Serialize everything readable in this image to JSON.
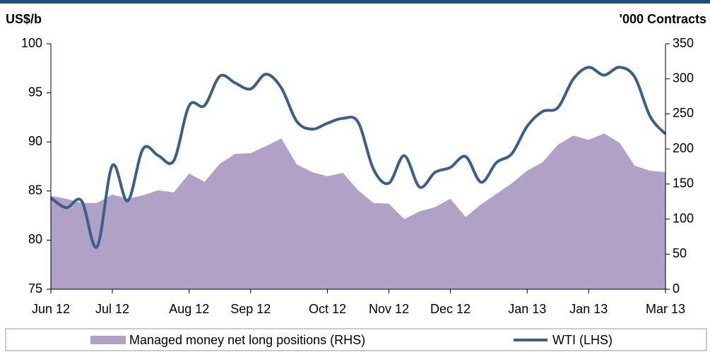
{
  "chart_data": {
    "type": "line_area",
    "y_label": "US$/b",
    "y2_label": "'000 Contracts",
    "categories": [
      "Jun 12",
      null,
      null,
      null,
      "Jul 12",
      null,
      null,
      null,
      null,
      "Aug 12",
      null,
      null,
      null,
      "Sep 12",
      null,
      null,
      null,
      null,
      "Oct 12",
      null,
      null,
      null,
      "Nov 12",
      null,
      null,
      null,
      "Dec 12",
      null,
      null,
      null,
      null,
      "Jan 13",
      null,
      null,
      null,
      "Jan 13",
      null,
      null,
      null,
      null,
      "Mar 13"
    ],
    "series": [
      {
        "name": "Managed money net long positions (RHS)",
        "color": "#b1a1c7",
        "axis": "y2",
        "kind": "area",
        "values": [
          133,
          129,
          123,
          123,
          135,
          129,
          134,
          141,
          138,
          165,
          153,
          179,
          193,
          194,
          204,
          215,
          178,
          167,
          161,
          166,
          141,
          123,
          122,
          100,
          111,
          117,
          129,
          103,
          121,
          136,
          151,
          169,
          181,
          206,
          219,
          213,
          222,
          209,
          176,
          169,
          167
        ]
      },
      {
        "name": "WTI (LHS)",
        "color": "#3a5f8f",
        "axis": "y",
        "kind": "line",
        "values": [
          84.3,
          83.3,
          84.0,
          79.3,
          87.6,
          84.0,
          89.3,
          88.6,
          88.1,
          93.7,
          93.7,
          96.7,
          96.0,
          95.4,
          96.9,
          95.5,
          92.1,
          91.3,
          91.9,
          92.4,
          92.0,
          87.2,
          85.8,
          88.6,
          85.4,
          86.9,
          87.4,
          88.5,
          85.9,
          87.9,
          88.8,
          91.6,
          93.1,
          93.5,
          96.4,
          97.6,
          96.8,
          97.6,
          96.6,
          92.6,
          90.8
        ]
      }
    ],
    "ylim": [
      75,
      100
    ],
    "yticks": [
      75,
      80,
      85,
      90,
      95,
      100
    ],
    "y2lim": [
      0,
      350
    ],
    "y2ticks": [
      0,
      50,
      100,
      150,
      200,
      250,
      300,
      350
    ],
    "legend": "bottom"
  }
}
